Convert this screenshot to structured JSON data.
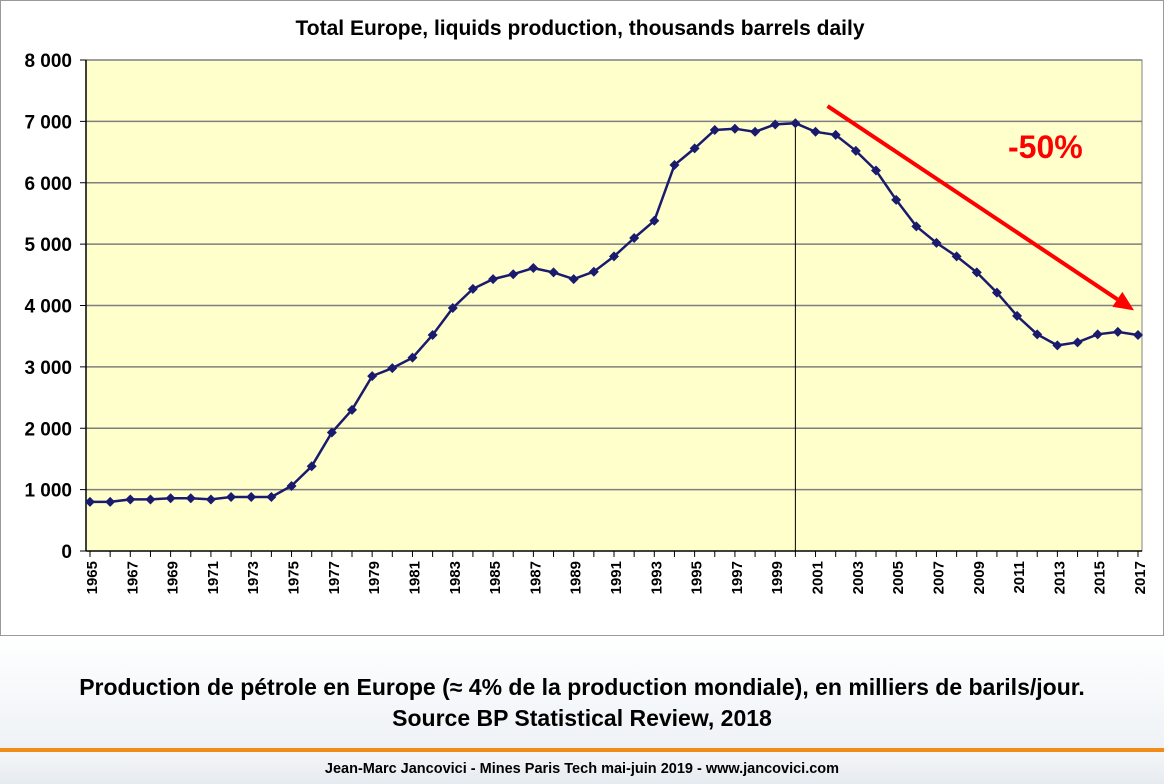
{
  "chart_data": {
    "type": "line",
    "title": "Total Europe, liquids production, thousands barrels daily",
    "x": [
      1965,
      1966,
      1967,
      1968,
      1969,
      1970,
      1971,
      1972,
      1973,
      1974,
      1975,
      1976,
      1977,
      1978,
      1979,
      1980,
      1981,
      1982,
      1983,
      1984,
      1985,
      1986,
      1987,
      1988,
      1989,
      1990,
      1991,
      1992,
      1993,
      1994,
      1995,
      1996,
      1997,
      1998,
      1999,
      2000,
      2001,
      2002,
      2003,
      2004,
      2005,
      2006,
      2007,
      2008,
      2009,
      2010,
      2011,
      2012,
      2013,
      2014,
      2015,
      2016,
      2017
    ],
    "series": [
      {
        "values": [
          800,
          800,
          840,
          840,
          860,
          860,
          840,
          880,
          880,
          880,
          1060,
          1380,
          1930,
          2300,
          2850,
          2980,
          3150,
          3520,
          3960,
          4270,
          4430,
          4510,
          4610,
          4540,
          4430,
          4550,
          4800,
          5100,
          5380,
          6290,
          6560,
          6860,
          6880,
          6830,
          6950,
          6970,
          6830,
          6780,
          6520,
          6200,
          5720,
          5290,
          5020,
          4800,
          4540,
          4210,
          3830,
          3530,
          3350,
          3400,
          3530,
          3570,
          3520
        ]
      }
    ],
    "xlim": [
      1965,
      2017
    ],
    "ylim": [
      0,
      8000
    ],
    "y_ticks": [
      0,
      1000,
      2000,
      3000,
      4000,
      5000,
      6000,
      7000,
      8000
    ],
    "y_tick_labels": [
      "0",
      "1 000",
      "2 000",
      "3 000",
      "4 000",
      "5 000",
      "6 000",
      "7 000",
      "8 000"
    ],
    "x_tick_labels": [
      "1965",
      "1967",
      "1969",
      "1971",
      "1973",
      "1975",
      "1977",
      "1979",
      "1981",
      "1983",
      "1985",
      "1987",
      "1989",
      "1991",
      "1993",
      "1995",
      "1997",
      "1999",
      "2001",
      "2003",
      "2005",
      "2007",
      "2009",
      "2011",
      "2013",
      "2015",
      "2017"
    ],
    "grid": "horizontal",
    "peak_marker_year": 2000,
    "annotation": {
      "text": "-50%",
      "arrow_from": [
        2001,
        7250
      ],
      "arrow_to": [
        2017,
        3920
      ],
      "color": "#ff0000"
    },
    "colors": {
      "line": "#1a1a6e",
      "plot_bg": "#ffffcc",
      "grid": "#7f7f7f"
    }
  },
  "caption": "Production de pétrole en Europe (≈ 4% de la production mondiale), en milliers de barils/jour. Source BP Statistical Review, 2018",
  "footer": "Jean-Marc Jancovici - Mines Paris Tech mai-juin 2019 - www.jancovici.com"
}
